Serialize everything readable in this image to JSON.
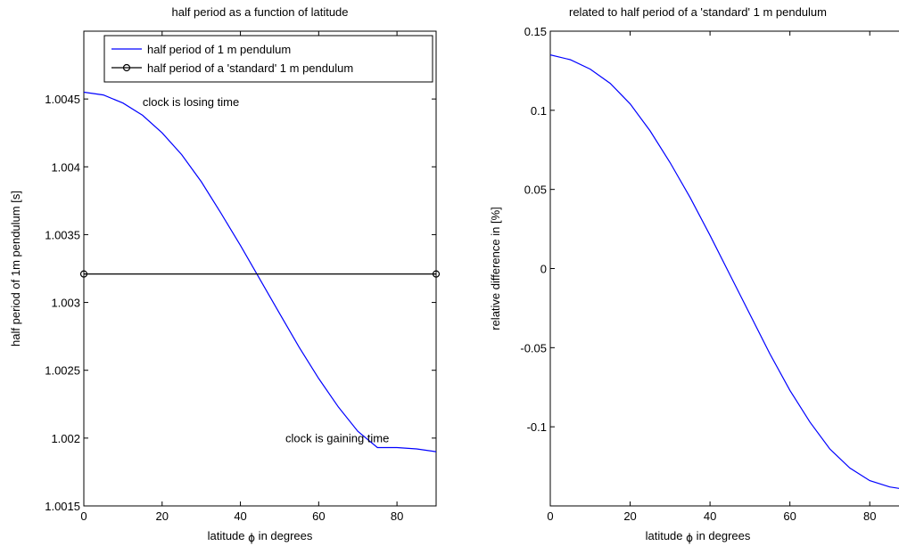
{
  "chart_data": [
    {
      "type": "line",
      "title": "half period as a function of latitude",
      "xlabel_pre": "latitude ",
      "xlabel_sym": "ϕ",
      "xlabel_post": " in degrees",
      "ylabel": "half period of 1m pendulum [s]",
      "xlim": [
        0,
        90
      ],
      "ylim": [
        1.0015,
        1.005
      ],
      "xticks": [
        0,
        20,
        40,
        60,
        80
      ],
      "xtick_labels": [
        "0",
        "20",
        "40",
        "60",
        "80"
      ],
      "yticks": [
        1.0015,
        1.002,
        1.0025,
        1.003,
        1.0035,
        1.004,
        1.0045
      ],
      "ytick_labels": [
        "1.0015",
        "1.002",
        "1.0025",
        "1.003",
        "1.0035",
        "1.004",
        "1.0045"
      ],
      "legend_position": "top-right",
      "series": [
        {
          "name": "half period of 1 m pendulum",
          "color": "#0000ff",
          "marker": "none",
          "x": [
            0,
            5,
            10,
            15,
            20,
            25,
            30,
            35,
            40,
            45,
            50,
            55,
            60,
            65,
            70,
            75,
            80,
            85,
            90
          ],
          "y": [
            1.00455,
            1.00453,
            1.00447,
            1.00438,
            1.00425,
            1.00409,
            1.00389,
            1.00366,
            1.00342,
            1.00317,
            1.00292,
            1.00267,
            1.00244,
            1.00223,
            1.00205,
            1.00193,
            1.00193,
            1.00192,
            1.0019
          ]
        },
        {
          "name": "half period of a 'standard' 1 m pendulum",
          "color": "#000000",
          "marker": "circle",
          "x": [
            0,
            90
          ],
          "y": [
            1.00321,
            1.00321
          ]
        }
      ],
      "annotations": [
        {
          "text": "clock is losing time",
          "x": 15,
          "y": 1.00445
        },
        {
          "text": "clock is gaining time",
          "x": 51.5,
          "y": 1.00197
        }
      ]
    },
    {
      "type": "line",
      "title": "related to half period of a 'standard' 1 m pendulum",
      "xlabel_pre": "latitude ",
      "xlabel_sym": "ϕ",
      "xlabel_post": " in degrees",
      "ylabel": "relative difference in [%]",
      "xlim": [
        0,
        90
      ],
      "ylim": [
        -0.15,
        0.15
      ],
      "xticks": [
        0,
        20,
        40,
        60,
        80
      ],
      "xtick_labels": [
        "0",
        "20",
        "40",
        "60",
        "80"
      ],
      "yticks": [
        -0.1,
        -0.05,
        0,
        0.05,
        0.1,
        0.15
      ],
      "ytick_labels": [
        "-0.1",
        "-0.05",
        "0",
        "0.05",
        "0.1",
        "0.15"
      ],
      "series": [
        {
          "color": "#0000ff",
          "x": [
            0,
            5,
            10,
            15,
            20,
            25,
            30,
            35,
            40,
            45,
            50,
            55,
            60,
            65,
            70,
            75,
            80,
            85,
            90
          ],
          "y": [
            0.135,
            0.132,
            0.126,
            0.117,
            0.104,
            0.087,
            0.067,
            0.045,
            0.021,
            -0.004,
            -0.029,
            -0.054,
            -0.077,
            -0.097,
            -0.114,
            -0.126,
            -0.134,
            -0.138,
            -0.14
          ]
        }
      ]
    }
  ]
}
